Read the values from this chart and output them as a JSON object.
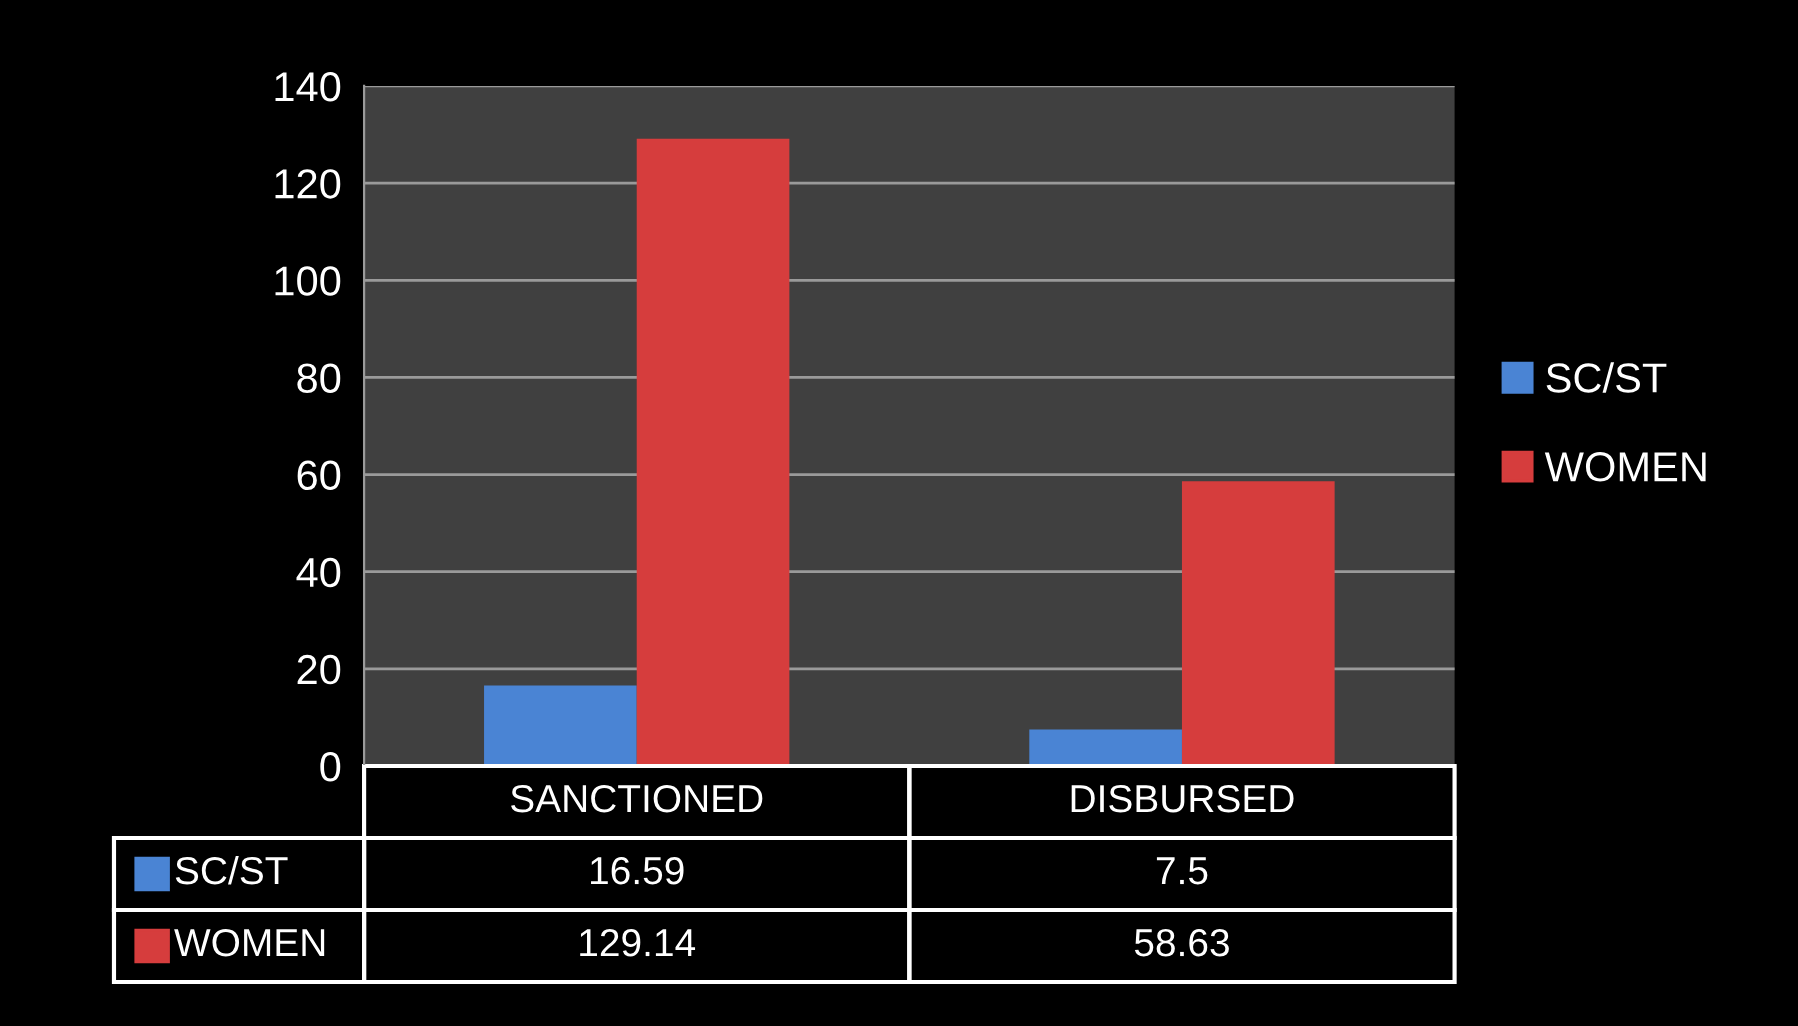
{
  "chart_data": {
    "type": "bar",
    "categories": [
      "SANCTIONED",
      "DISBURSED"
    ],
    "series": [
      {
        "name": "SC/ST",
        "color": "#4a84d4",
        "values": [
          16.59,
          7.5
        ]
      },
      {
        "name": "WOMEN",
        "color": "#d63d3d",
        "values": [
          129.14,
          58.63
        ]
      }
    ],
    "ylim": [
      0,
      140
    ],
    "yticks": [
      0,
      20,
      40,
      60,
      80,
      100,
      120,
      140
    ],
    "grid": "y",
    "legend": "right",
    "data_labels": true
  }
}
